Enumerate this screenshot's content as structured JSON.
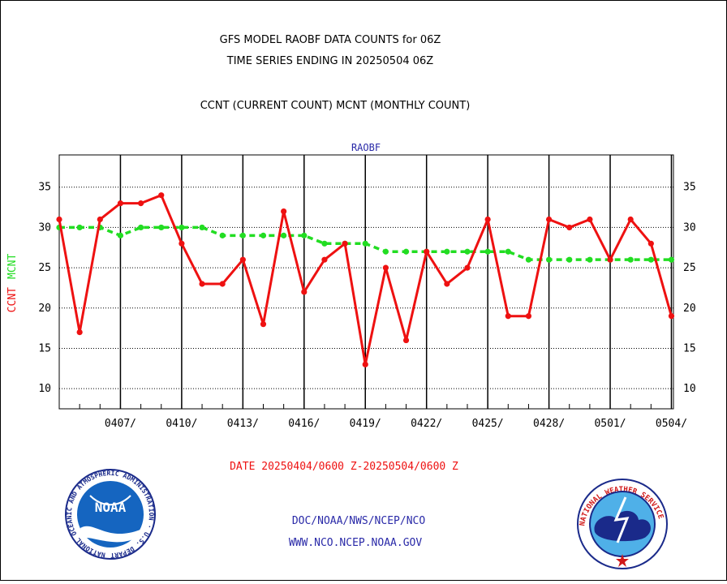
{
  "chart_data": {
    "type": "line",
    "title_lines": [
      "GFS MODEL RAOBF DATA COUNTS for 06Z",
      "TIME SERIES ENDING IN 20250504 06Z"
    ],
    "subtitle": "CCNT (CURRENT COUNT) MCNT (MONTHLY COUNT)",
    "panel_label": "RAOBF",
    "ylabel_ccnt": "CCNT",
    "ylabel_mcnt": "MCNT",
    "xlabel": "DATE 20250404/0600 Z-20250504/0600 Z",
    "ylim": [
      7.5,
      39
    ],
    "yticks": [
      10,
      15,
      20,
      25,
      30,
      35
    ],
    "xlim": [
      0,
      30.1
    ],
    "x_ticks": [
      {
        "pos": 3,
        "label": "0407/"
      },
      {
        "pos": 6,
        "label": "0410/"
      },
      {
        "pos": 9,
        "label": "0413/"
      },
      {
        "pos": 12,
        "label": "0416/"
      },
      {
        "pos": 15,
        "label": "0419/"
      },
      {
        "pos": 18,
        "label": "0422/"
      },
      {
        "pos": 21,
        "label": "0425/"
      },
      {
        "pos": 24,
        "label": "0428/"
      },
      {
        "pos": 27,
        "label": "0501/"
      },
      {
        "pos": 30,
        "label": "0504/"
      }
    ],
    "grid": true,
    "series": [
      {
        "name": "CCNT",
        "color": "#ee1111",
        "values": [
          31,
          17,
          31,
          33,
          33,
          34,
          28,
          23,
          23,
          26,
          18,
          32,
          22,
          26,
          28,
          13,
          25,
          16,
          27,
          23,
          25,
          31,
          19,
          19,
          31,
          30,
          31,
          26,
          31,
          28,
          19
        ]
      },
      {
        "name": "MCNT",
        "color": "#22dd22",
        "values": [
          30,
          30,
          30,
          29,
          30,
          30,
          30,
          30,
          29,
          29,
          29,
          29,
          29,
          28,
          28,
          28,
          27,
          27,
          27,
          27,
          27,
          27,
          27,
          26,
          26,
          26,
          26,
          26,
          26,
          26,
          26
        ]
      }
    ]
  },
  "footer": {
    "org_line": "DOC/NOAA/NWS/NCEP/NCO",
    "url_line": "WWW.NCO.NCEP.NOAA.GOV"
  },
  "logos": {
    "noaa_text": "NOAA",
    "noaa_ring": "NATIONAL OCEANIC AND ATMOSPHERIC ADMINISTRATION · U.S. DEPARTMENT OF COMMERCE ·",
    "nws_ring": "NATIONAL WEATHER SERVICE"
  },
  "colors": {
    "ccnt": "#ee1111",
    "mcnt": "#22dd22",
    "blue_text": "#2a2aa8"
  }
}
